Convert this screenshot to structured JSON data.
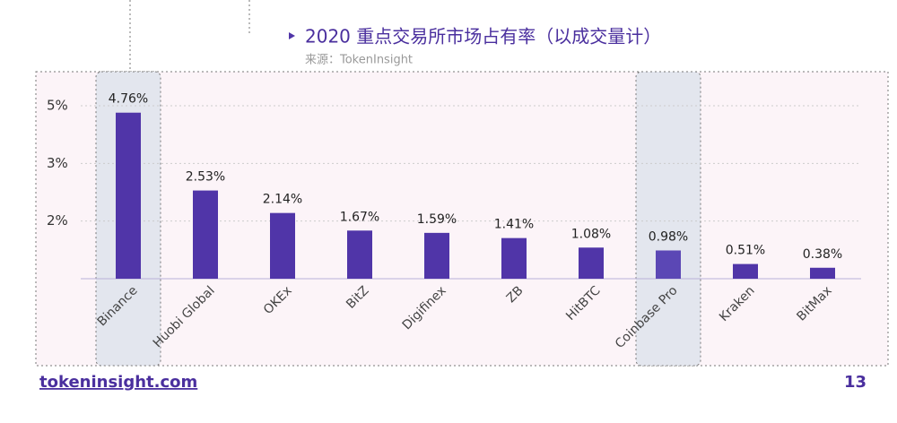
{
  "chart_data": {
    "type": "bar",
    "title": "2020 重点交易所市场占有率（以成交量计）",
    "subtitle": "来源：TokenInsight",
    "categories": [
      "Binance",
      "Huobi Global",
      "OKEx",
      "BitZ",
      "Digifinex",
      "ZB",
      "HitBTC",
      "Coinbase Pro",
      "Kraken",
      "BitMax"
    ],
    "values": [
      4.76,
      2.53,
      2.14,
      1.67,
      1.59,
      1.41,
      1.08,
      0.98,
      0.51,
      0.38
    ],
    "value_labels": [
      "4.76%",
      "2.53%",
      "2.14%",
      "1.67%",
      "1.59%",
      "1.41%",
      "1.08%",
      "0.98%",
      "0.51%",
      "0.38%"
    ],
    "color": "#5035a8",
    "highlight_color": "#5b47b5",
    "highlight": [
      0,
      7
    ],
    "ylim": [
      0,
      5
    ],
    "yticks": [
      {
        "value": 5,
        "label": "5%"
      },
      {
        "value": 3,
        "label": "3%"
      },
      {
        "value": 2,
        "label": "2%"
      }
    ],
    "grid": true
  },
  "footer": {
    "site": "tokeninsight.com",
    "page": "13"
  }
}
